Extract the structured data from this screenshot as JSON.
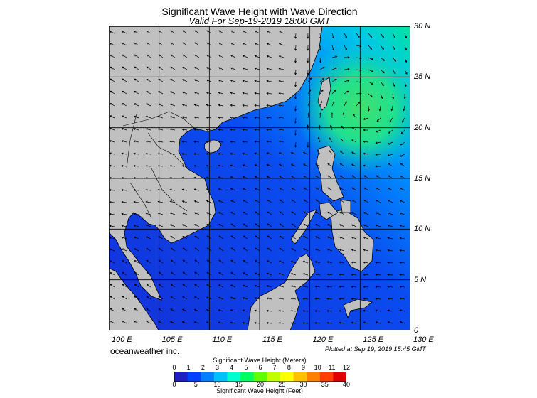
{
  "title": "Significant Wave Height with Wave Direction",
  "subtitle": "Valid For Sep-19-2019 18:00 GMT",
  "map": {
    "lat_labels": [
      "30 N",
      "25 N",
      "20 N",
      "15 N",
      "10 N",
      "5 N",
      "0"
    ],
    "lon_labels": [
      "100 E",
      "105 E",
      "110 E",
      "115 E",
      "120 E",
      "125 E",
      "130 E"
    ],
    "lon_range": [
      100,
      130
    ],
    "lat_range": [
      0,
      30
    ]
  },
  "credit": "oceanweather inc.",
  "plotted": "Plotted at Sep 19, 2019 15:45 GMT",
  "colorbar": {
    "title_top": "Significant Wave Height (Meters)",
    "title_bottom": "Significant Wave Height (Feet)",
    "meters": [
      "0",
      "1",
      "2",
      "3",
      "4",
      "5",
      "6",
      "7",
      "8",
      "9",
      "10",
      "11",
      "12"
    ],
    "feet": [
      "0",
      "5",
      "10",
      "15",
      "20",
      "25",
      "30",
      "35",
      "40"
    ],
    "colors": [
      "#2020c0",
      "#0040ff",
      "#0080ff",
      "#00c0ff",
      "#00ffd0",
      "#00ff60",
      "#60ff00",
      "#c0ff00",
      "#ffff00",
      "#ffc000",
      "#ff8000",
      "#ff4000",
      "#e00000"
    ]
  },
  "colors": {
    "land": "#c0c0c0",
    "sea_low": "#1030e0",
    "sea_mid": "#0090ff",
    "sea_high": "#00e0a0",
    "grid": "#000000"
  }
}
